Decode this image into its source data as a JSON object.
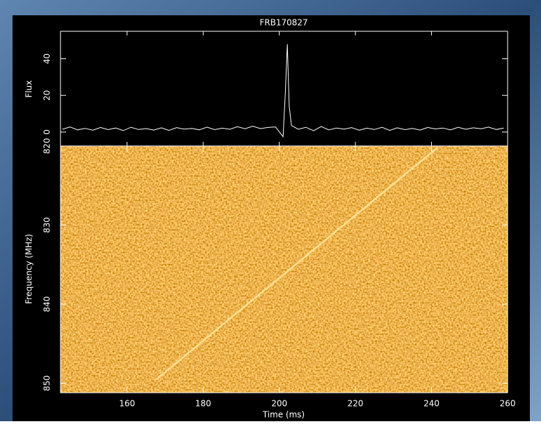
{
  "chart_data": [
    {
      "type": "line",
      "title": "FRB170827",
      "ylabel": "Flux",
      "color": "#ffffff",
      "x": [
        143,
        145,
        147,
        149,
        151,
        153,
        155,
        157,
        159,
        161,
        163,
        165,
        167,
        169,
        171,
        173,
        175,
        177,
        179,
        181,
        183,
        185,
        187,
        189,
        191,
        193,
        195,
        197,
        199,
        201,
        201.6,
        202.1,
        202.6,
        203.2,
        205,
        207,
        209,
        211,
        213,
        215,
        217,
        219,
        221,
        223,
        225,
        227,
        229,
        231,
        233,
        235,
        237,
        239,
        241,
        243,
        245,
        247,
        249,
        251,
        253,
        255,
        257,
        259
      ],
      "values": [
        1.5,
        2.8,
        1.2,
        2.0,
        1.0,
        2.5,
        1.3,
        2.2,
        0.8,
        2.6,
        1.4,
        1.9,
        1.1,
        2.3,
        0.9,
        2.4,
        1.6,
        2.0,
        1.2,
        2.7,
        1.3,
        2.1,
        1.5,
        2.9,
        1.8,
        3.2,
        1.9,
        2.5,
        2.8,
        -2.5,
        22,
        48,
        14,
        3.5,
        1.5,
        2.6,
        0.7,
        3.0,
        1.2,
        2.2,
        1.6,
        2.4,
        1.0,
        2.1,
        1.4,
        2.6,
        0.9,
        2.3,
        1.3,
        2.0,
        1.1,
        2.5,
        1.7,
        2.2,
        1.2,
        2.6,
        1.5,
        2.3,
        1.8,
        2.7,
        1.4,
        2.2
      ],
      "xlim": [
        142.5,
        260
      ],
      "ylim": [
        -7.6,
        55
      ],
      "yticks": [
        0,
        20,
        40
      ]
    },
    {
      "type": "heatmap",
      "xlabel": "Time (ms)",
      "ylabel": "Frequency (MHz)",
      "xlim": [
        142.5,
        260
      ],
      "xticks": [
        160,
        180,
        200,
        220,
        240,
        260
      ],
      "ylim": [
        820,
        851.2
      ],
      "y_inverted": true,
      "yticks": [
        820,
        830,
        840,
        850
      ],
      "series": [
        {
          "x": [
            167.7,
            241.6
          ],
          "values": [
            849.5,
            820.2
          ],
          "color": "#ffe9a0"
        }
      ]
    }
  ]
}
